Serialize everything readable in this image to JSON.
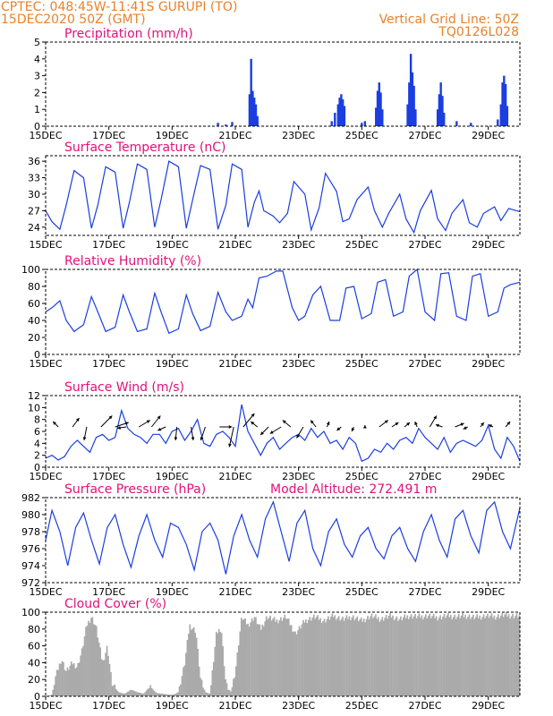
{
  "header": {
    "line1_left": "CPTEC:   048:45W-11:41S   GURUPI (TO)",
    "line2_left": "15DEC2020 50Z (GMT)",
    "line1_right": "Vertical Grid Line: 50Z",
    "line2_right": "TQ0126L028"
  },
  "colors": {
    "header": "#e8822a",
    "title": "#e0127a",
    "line": "#1a3ee0",
    "bar": "#1a3ee0",
    "cloud": "#aaaaaa"
  },
  "chart_data": [
    {
      "id": "precip",
      "type": "bar",
      "title": "Precipitation (mm/h)",
      "ylim": [
        0,
        5
      ],
      "yticks": [
        0,
        1,
        2,
        3,
        4,
        5
      ],
      "xticks": [
        "15DEC",
        "17DEC",
        "19DEC",
        "21DEC",
        "23DEC",
        "25DEC",
        "27DEC",
        "29DEC"
      ],
      "x_days": [
        15,
        30
      ],
      "color": "#1a3ee0",
      "values": [
        {
          "t": 20.45,
          "v": 0.2
        },
        {
          "t": 20.7,
          "v": 0.1
        },
        {
          "t": 20.9,
          "v": 0.25
        },
        {
          "t": 21.45,
          "v": 1.9
        },
        {
          "t": 21.5,
          "v": 4.0
        },
        {
          "t": 21.55,
          "v": 2.1
        },
        {
          "t": 21.6,
          "v": 1.7
        },
        {
          "t": 21.65,
          "v": 1.3
        },
        {
          "t": 21.7,
          "v": 0.6
        },
        {
          "t": 24.05,
          "v": 0.3
        },
        {
          "t": 24.15,
          "v": 0.8
        },
        {
          "t": 24.25,
          "v": 1.3
        },
        {
          "t": 24.3,
          "v": 1.7
        },
        {
          "t": 24.35,
          "v": 1.9
        },
        {
          "t": 24.4,
          "v": 1.6
        },
        {
          "t": 24.45,
          "v": 1.2
        },
        {
          "t": 25.0,
          "v": 0.2
        },
        {
          "t": 25.1,
          "v": 0.3
        },
        {
          "t": 25.45,
          "v": 1.1
        },
        {
          "t": 25.5,
          "v": 2.1
        },
        {
          "t": 25.55,
          "v": 2.6
        },
        {
          "t": 25.6,
          "v": 2.0
        },
        {
          "t": 25.65,
          "v": 1.0
        },
        {
          "t": 26.45,
          "v": 1.3
        },
        {
          "t": 26.5,
          "v": 2.6
        },
        {
          "t": 26.55,
          "v": 4.3
        },
        {
          "t": 26.6,
          "v": 3.2
        },
        {
          "t": 26.65,
          "v": 2.4
        },
        {
          "t": 26.7,
          "v": 1.0
        },
        {
          "t": 27.4,
          "v": 1.0
        },
        {
          "t": 27.45,
          "v": 1.9
        },
        {
          "t": 27.5,
          "v": 2.6
        },
        {
          "t": 27.55,
          "v": 1.8
        },
        {
          "t": 27.6,
          "v": 0.8
        },
        {
          "t": 28.0,
          "v": 0.3
        },
        {
          "t": 28.45,
          "v": 0.2
        },
        {
          "t": 29.3,
          "v": 0.4
        },
        {
          "t": 29.4,
          "v": 1.3
        },
        {
          "t": 29.45,
          "v": 2.6
        },
        {
          "t": 29.5,
          "v": 3.0
        },
        {
          "t": 29.55,
          "v": 2.5
        },
        {
          "t": 29.6,
          "v": 1.2
        }
      ]
    },
    {
      "id": "temp",
      "type": "line",
      "title": "Surface Temperature (nC)",
      "ylim": [
        22.5,
        37
      ],
      "yticks": [
        24,
        27,
        30,
        33,
        36
      ],
      "xticks": [
        "15DEC",
        "17DEC",
        "19DEC",
        "21DEC",
        "23DEC",
        "25DEC",
        "27DEC",
        "29DEC"
      ],
      "x_days": [
        15,
        30
      ],
      "color": "#1a3ee0",
      "x": [
        15.0,
        15.2,
        15.45,
        15.65,
        15.9,
        16.2,
        16.45,
        16.65,
        16.9,
        17.2,
        17.45,
        17.65,
        17.9,
        18.2,
        18.45,
        18.65,
        18.9,
        19.2,
        19.45,
        19.65,
        19.9,
        20.2,
        20.45,
        20.7,
        20.9,
        21.2,
        21.4,
        21.6,
        21.75,
        21.9,
        22.2,
        22.4,
        22.65,
        22.85,
        23.2,
        23.4,
        23.65,
        23.85,
        24.2,
        24.4,
        24.6,
        24.85,
        25.2,
        25.4,
        25.65,
        25.85,
        26.2,
        26.4,
        26.65,
        26.85,
        27.2,
        27.4,
        27.65,
        27.85,
        28.2,
        28.4,
        28.65,
        28.85,
        29.2,
        29.4,
        29.65,
        30.0
      ],
      "y": [
        27.0,
        25.0,
        23.6,
        28.0,
        34.3,
        33.0,
        23.8,
        28.0,
        35.0,
        34.0,
        23.8,
        28.5,
        35.5,
        34.5,
        24.0,
        29.0,
        36.0,
        35.0,
        23.8,
        29.0,
        35.2,
        34.5,
        23.6,
        28.0,
        35.5,
        34.5,
        24.0,
        28.5,
        30.6,
        27.0,
        26.0,
        24.8,
        26.5,
        32.3,
        30.0,
        23.5,
        27.5,
        33.8,
        30.5,
        25.0,
        25.5,
        29.0,
        31.3,
        27.0,
        24.0,
        26.5,
        30.0,
        25.5,
        23.0,
        27.0,
        30.7,
        25.5,
        23.4,
        26.5,
        29.0,
        24.8,
        24.0,
        26.5,
        27.7,
        25.2,
        27.4,
        26.8
      ]
    },
    {
      "id": "rh",
      "type": "line",
      "title": "Relative Humidity (%)",
      "ylim": [
        0,
        100
      ],
      "yticks": [
        0,
        20,
        40,
        60,
        80,
        100
      ],
      "xticks": [
        "15DEC",
        "17DEC",
        "19DEC",
        "21DEC",
        "23DEC",
        "25DEC",
        "27DEC",
        "29DEC"
      ],
      "x_days": [
        15,
        30
      ],
      "color": "#1a3ee0",
      "x": [
        15.0,
        15.2,
        15.45,
        15.65,
        15.9,
        16.2,
        16.45,
        16.65,
        16.9,
        17.2,
        17.45,
        17.65,
        17.9,
        18.2,
        18.45,
        18.65,
        18.9,
        19.2,
        19.45,
        19.65,
        19.9,
        20.2,
        20.45,
        20.7,
        20.9,
        21.2,
        21.4,
        21.55,
        21.75,
        22.0,
        22.3,
        22.5,
        22.8,
        23.0,
        23.2,
        23.45,
        23.7,
        24.0,
        24.3,
        24.5,
        24.75,
        25.0,
        25.3,
        25.5,
        25.75,
        26.0,
        26.3,
        26.5,
        26.75,
        27.0,
        27.3,
        27.5,
        27.75,
        28.0,
        28.3,
        28.5,
        28.75,
        29.0,
        29.3,
        29.5,
        29.7,
        30.0
      ],
      "y": [
        50,
        55,
        63,
        40,
        27,
        35,
        68,
        50,
        27,
        32,
        70,
        50,
        27,
        30,
        72,
        50,
        25,
        30,
        70,
        48,
        28,
        33,
        73,
        50,
        40,
        45,
        65,
        55,
        90,
        92,
        98,
        98,
        55,
        40,
        45,
        70,
        80,
        40,
        40,
        78,
        80,
        42,
        48,
        85,
        88,
        45,
        50,
        92,
        100,
        50,
        40,
        95,
        96,
        45,
        40,
        92,
        95,
        45,
        50,
        78,
        82,
        85
      ]
    },
    {
      "id": "wind",
      "type": "line",
      "title": "Surface Wind (m/s)",
      "ylim": [
        0,
        12
      ],
      "yticks": [
        0,
        2,
        4,
        6,
        8,
        10,
        12
      ],
      "xticks": [
        "15DEC",
        "17DEC",
        "19DEC",
        "21DEC",
        "23DEC",
        "25DEC",
        "27DEC",
        "29DEC"
      ],
      "x_days": [
        15,
        30
      ],
      "color": "#1a3ee0",
      "x": [
        15.0,
        15.2,
        15.4,
        15.6,
        15.8,
        16.0,
        16.2,
        16.4,
        16.6,
        16.8,
        17.0,
        17.2,
        17.4,
        17.6,
        17.8,
        18.0,
        18.2,
        18.4,
        18.6,
        18.8,
        19.0,
        19.2,
        19.4,
        19.6,
        19.8,
        20.0,
        20.2,
        20.4,
        20.6,
        20.8,
        21.0,
        21.2,
        21.4,
        21.6,
        21.8,
        22.0,
        22.2,
        22.4,
        22.6,
        22.8,
        23.0,
        23.2,
        23.4,
        23.6,
        23.8,
        24.0,
        24.2,
        24.4,
        24.6,
        24.8,
        25.0,
        25.2,
        25.4,
        25.6,
        25.8,
        26.0,
        26.2,
        26.4,
        26.6,
        26.8,
        27.0,
        27.2,
        27.4,
        27.6,
        27.8,
        28.0,
        28.2,
        28.4,
        28.6,
        28.8,
        29.0,
        29.2,
        29.4,
        29.6,
        29.8,
        30.0
      ],
      "y": [
        1.5,
        2.0,
        1.2,
        1.8,
        3.5,
        4.5,
        3.5,
        2.5,
        5.0,
        5.5,
        4.5,
        5.0,
        9.5,
        6.5,
        5.5,
        5.0,
        4.0,
        5.5,
        5.5,
        4.0,
        6.0,
        6.5,
        4.5,
        6.0,
        8.0,
        4.0,
        3.5,
        5.5,
        6.0,
        5.0,
        3.5,
        10.5,
        6.0,
        4.0,
        2.0,
        4.0,
        5.0,
        3.0,
        4.0,
        5.0,
        5.5,
        4.5,
        6.5,
        5.0,
        6.0,
        4.0,
        4.5,
        3.0,
        5.0,
        4.0,
        1.0,
        1.5,
        3.0,
        2.5,
        4.0,
        3.0,
        4.5,
        5.0,
        4.0,
        6.5,
        5.0,
        4.0,
        3.0,
        5.0,
        2.5,
        4.0,
        4.5,
        4.0,
        3.5,
        4.5,
        7.0,
        3.0,
        1.5,
        5.0,
        3.5,
        1.0
      ],
      "barbs": [
        {
          "t": 15.4,
          "u": -1.2,
          "v": 1.2
        },
        {
          "t": 15.85,
          "u": 1.5,
          "v": 2.0
        },
        {
          "t": 16.3,
          "u": -0.6,
          "v": -3.0
        },
        {
          "t": 16.75,
          "u": 2.5,
          "v": 2.5
        },
        {
          "t": 17.2,
          "u": 3.0,
          "v": 1.0
        },
        {
          "t": 17.55,
          "u": -2.0,
          "v": -0.3
        },
        {
          "t": 17.95,
          "u": 2.5,
          "v": 1.5
        },
        {
          "t": 18.35,
          "u": 2.0,
          "v": 2.5
        },
        {
          "t": 18.8,
          "u": -1.8,
          "v": -0.8
        },
        {
          "t": 19.15,
          "u": -0.3,
          "v": -3.0
        },
        {
          "t": 19.6,
          "u": 0.5,
          "v": -3.0
        },
        {
          "t": 20.05,
          "u": -1.0,
          "v": -3.0
        },
        {
          "t": 20.5,
          "u": 2.8,
          "v": 0.0
        },
        {
          "t": 20.95,
          "u": -1.0,
          "v": -4.5
        },
        {
          "t": 21.25,
          "u": 2.5,
          "v": 3.0
        },
        {
          "t": 21.7,
          "u": -1.5,
          "v": 1.2
        },
        {
          "t": 22.05,
          "u": -1.8,
          "v": -1.8
        },
        {
          "t": 22.45,
          "u": -2.5,
          "v": -1.5
        },
        {
          "t": 22.75,
          "u": -1.8,
          "v": 1.5
        },
        {
          "t": 23.15,
          "u": -1.5,
          "v": -2.5
        },
        {
          "t": 23.55,
          "u": -1.2,
          "v": 1.5
        },
        {
          "t": 23.9,
          "u": 0.5,
          "v": 1.2
        },
        {
          "t": 24.35,
          "u": -1.0,
          "v": -0.8
        },
        {
          "t": 24.75,
          "u": -0.5,
          "v": -1.0
        },
        {
          "t": 25.1,
          "u": 0.0,
          "v": 0.4
        },
        {
          "t": 25.55,
          "u": 2.0,
          "v": 1.5
        },
        {
          "t": 25.95,
          "u": 1.5,
          "v": 1.0
        },
        {
          "t": 26.35,
          "u": 1.2,
          "v": 1.0
        },
        {
          "t": 26.75,
          "u": -0.5,
          "v": 1.2
        },
        {
          "t": 27.15,
          "u": 1.5,
          "v": 2.5
        },
        {
          "t": 27.55,
          "u": -1.5,
          "v": 0.5
        },
        {
          "t": 27.95,
          "u": 2.0,
          "v": 0.8
        },
        {
          "t": 28.35,
          "u": -1.0,
          "v": -0.5
        },
        {
          "t": 28.75,
          "u": 0.8,
          "v": 1.0
        },
        {
          "t": 29.15,
          "u": -1.0,
          "v": 0.5
        },
        {
          "t": 29.55,
          "u": 1.0,
          "v": 1.2
        }
      ]
    },
    {
      "id": "pressure",
      "type": "line",
      "title": "Surface Pressure (hPa)",
      "subtitle": "Model Altitude: 272.491 m",
      "ylim": [
        972,
        982
      ],
      "yticks": [
        972,
        974,
        976,
        978,
        980,
        982
      ],
      "xticks": [
        "15DEC",
        "17DEC",
        "19DEC",
        "21DEC",
        "23DEC",
        "25DEC",
        "27DEC",
        "29DEC"
      ],
      "x_days": [
        15,
        30
      ],
      "color": "#1a3ee0",
      "x": [
        15.0,
        15.2,
        15.45,
        15.7,
        15.95,
        16.2,
        16.45,
        16.7,
        16.95,
        17.2,
        17.45,
        17.7,
        17.95,
        18.2,
        18.45,
        18.7,
        18.95,
        19.2,
        19.45,
        19.7,
        19.95,
        20.2,
        20.45,
        20.7,
        20.95,
        21.2,
        21.45,
        21.7,
        21.95,
        22.2,
        22.45,
        22.7,
        22.95,
        23.2,
        23.45,
        23.7,
        23.95,
        24.2,
        24.45,
        24.7,
        24.95,
        25.2,
        25.45,
        25.7,
        25.95,
        26.2,
        26.45,
        26.7,
        26.95,
        27.2,
        27.45,
        27.7,
        27.95,
        28.2,
        28.45,
        28.7,
        28.95,
        29.2,
        29.45,
        29.7,
        30.0
      ],
      "y": [
        977.0,
        980.5,
        978.0,
        974.0,
        978.5,
        980.2,
        977.0,
        974.2,
        978.5,
        980.0,
        976.5,
        973.8,
        977.5,
        980.0,
        977.0,
        975.0,
        979.0,
        978.5,
        976.5,
        973.5,
        978.0,
        979.0,
        977.0,
        973.0,
        977.5,
        980.0,
        977.0,
        975.0,
        979.5,
        981.5,
        978.0,
        974.5,
        979.0,
        980.5,
        976.0,
        974.0,
        978.0,
        979.5,
        976.5,
        975.0,
        977.5,
        978.5,
        976.0,
        974.8,
        977.5,
        978.5,
        976.0,
        974.5,
        978.0,
        980.0,
        977.0,
        975.0,
        979.5,
        980.5,
        977.5,
        975.5,
        980.5,
        981.5,
        978.0,
        976.0,
        980.8
      ]
    },
    {
      "id": "cloud",
      "type": "area",
      "title": "Cloud Cover (%)",
      "ylim": [
        0,
        100
      ],
      "yticks": [
        0,
        20,
        40,
        60,
        80,
        100
      ],
      "xticks": [
        "15DEC",
        "17DEC",
        "19DEC",
        "21DEC",
        "23DEC",
        "25DEC",
        "27DEC",
        "29DEC"
      ],
      "x_days": [
        15,
        30
      ],
      "color": "#aaaaaa",
      "x": [
        15.0,
        15.2,
        15.3,
        15.5,
        15.65,
        15.85,
        16.0,
        16.15,
        16.3,
        16.45,
        16.6,
        16.8,
        16.95,
        17.1,
        17.3,
        17.5,
        17.7,
        17.9,
        18.1,
        18.3,
        18.5,
        18.7,
        18.9,
        19.05,
        19.2,
        19.4,
        19.55,
        19.75,
        19.9,
        20.05,
        20.2,
        20.4,
        20.55,
        20.7,
        20.85,
        21.0,
        21.2,
        21.4,
        21.6,
        21.8,
        22.0,
        22.3,
        22.6,
        22.9,
        23.2,
        23.5,
        23.8,
        24.1,
        24.4,
        24.7,
        25.0,
        25.3,
        25.6,
        25.9,
        26.2,
        26.5,
        26.8,
        27.1,
        27.4,
        27.7,
        28.0,
        28.3,
        28.6,
        28.9,
        29.2,
        29.5,
        29.8,
        30.0
      ],
      "y": [
        0,
        2,
        22,
        45,
        30,
        40,
        35,
        55,
        85,
        95,
        82,
        40,
        60,
        15,
        5,
        3,
        8,
        5,
        3,
        12,
        4,
        3,
        2,
        2,
        5,
        40,
        85,
        78,
        20,
        5,
        3,
        75,
        82,
        15,
        5,
        30,
        95,
        85,
        95,
        80,
        95,
        90,
        95,
        75,
        90,
        95,
        90,
        96,
        92,
        95,
        90,
        96,
        92,
        96,
        92,
        96,
        95,
        96,
        94,
        96,
        95,
        96,
        94,
        96,
        95,
        97,
        96,
        96
      ]
    }
  ]
}
